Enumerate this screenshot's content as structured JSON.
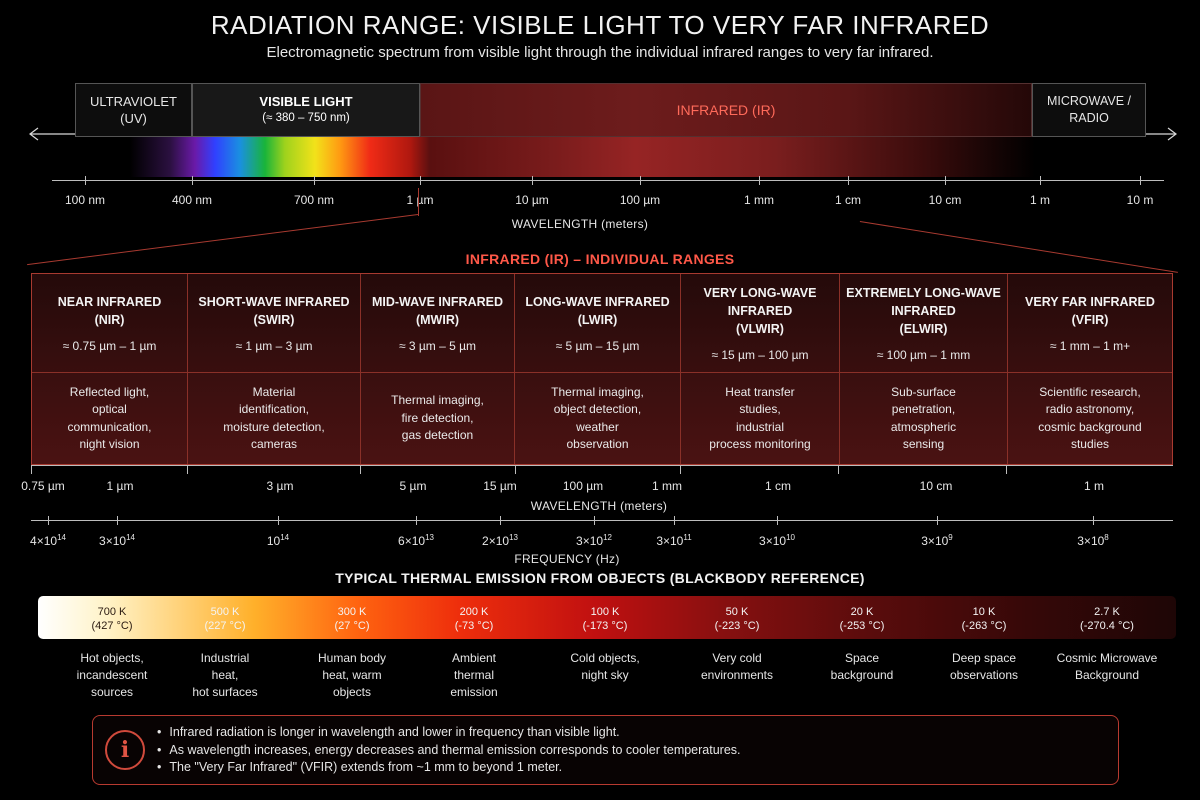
{
  "title": "RADIATION RANGE: VISIBLE LIGHT TO VERY FAR INFRARED",
  "subtitle": "Electromagnetic spectrum from visible light through the individual infrared ranges to very far infrared.",
  "spectrum": {
    "bands": [
      {
        "name": "ULTRAVIOLET",
        "sub": "(UV)"
      },
      {
        "name": "VISIBLE LIGHT",
        "sub": "(≈ 380 – 750 nm)"
      },
      {
        "name": "INFRARED (IR)",
        "sub": ""
      },
      {
        "name": "MICROWAVE /",
        "sub": "RADIO"
      }
    ],
    "ticks": [
      "100 nm",
      "400 nm",
      "700 nm",
      "1 µm",
      "10 µm",
      "100 µm",
      "1 mm",
      "1 cm",
      "10 cm",
      "1 m",
      "10 m"
    ],
    "axis_label": "WAVELENGTH (meters)"
  },
  "ir_ranges": {
    "heading": "INFRARED (IR) – INDIVIDUAL RANGES",
    "columns": [
      {
        "name": "NEAR INFRARED\n(NIR)",
        "range": "≈ 0.75 µm – 1 µm",
        "desc": "Reflected light,\noptical\ncommunication,\nnight vision"
      },
      {
        "name": "SHORT-WAVE INFRARED\n(SWIR)",
        "range": "≈ 1 µm – 3 µm",
        "desc": "Material\nidentification,\nmoisture detection,\ncameras"
      },
      {
        "name": "MID-WAVE INFRARED\n(MWIR)",
        "range": "≈ 3 µm – 5 µm",
        "desc": "Thermal imaging,\nfire detection,\ngas detection"
      },
      {
        "name": "LONG-WAVE INFRARED\n(LWIR)",
        "range": "≈ 5 µm – 15 µm",
        "desc": "Thermal imaging,\nobject detection,\nweather\nobservation"
      },
      {
        "name": "VERY LONG-WAVE\nINFRARED\n(VLWIR)",
        "range": "≈ 15 µm – 100 µm",
        "desc": "Heat transfer\nstudies,\nindustrial\nprocess monitoring"
      },
      {
        "name": "EXTREMELY LONG-WAVE\nINFRARED\n(ELWIR)",
        "range": "≈ 100 µm – 1 mm",
        "desc": "Sub-surface\npenetration,\natmospheric\nsensing"
      },
      {
        "name": "VERY FAR INFRARED\n(VFIR)",
        "range": "≈ 1 mm – 1 m+",
        "desc": "Scientific research,\nradio astronomy,\ncosmic background\nstudies"
      }
    ],
    "wavelength_ticks": [
      "0.75 µm",
      "1 µm",
      "3 µm",
      "5 µm",
      "15 µm",
      "100 µm",
      "1 mm",
      "1 cm",
      "10 cm",
      "1 m"
    ],
    "wavelength_label": "WAVELENGTH (meters)",
    "frequency_ticks": [
      {
        "base": "4×10",
        "exp": "14"
      },
      {
        "base": "3×10",
        "exp": "14"
      },
      {
        "base": "10",
        "exp": "14"
      },
      {
        "base": "6×10",
        "exp": "13"
      },
      {
        "base": "2×10",
        "exp": "13"
      },
      {
        "base": "3×10",
        "exp": "12"
      },
      {
        "base": "3×10",
        "exp": "11"
      },
      {
        "base": "3×10",
        "exp": "10"
      },
      {
        "base": "3×10",
        "exp": "9"
      },
      {
        "base": "3×10",
        "exp": "8"
      }
    ],
    "frequency_label": "FREQUENCY (Hz)"
  },
  "thermal": {
    "title": "TYPICAL THERMAL EMISSION FROM OBJECTS (BLACKBODY REFERENCE)",
    "stops": [
      {
        "k": "700 K",
        "c": "(427 °C)",
        "desc": "Hot objects,\nincandescent\nsources"
      },
      {
        "k": "500 K",
        "c": "(227 °C)",
        "desc": "Industrial\nheat,\nhot surfaces"
      },
      {
        "k": "300 K",
        "c": "(27 °C)",
        "desc": "Human body\nheat, warm\nobjects"
      },
      {
        "k": "200 K",
        "c": "(-73 °C)",
        "desc": "Ambient\nthermal\nemission"
      },
      {
        "k": "100 K",
        "c": "(-173 °C)",
        "desc": "Cold objects,\nnight sky"
      },
      {
        "k": "50 K",
        "c": "(-223 °C)",
        "desc": "Very cold\nenvironments"
      },
      {
        "k": "20 K",
        "c": "(-253 °C)",
        "desc": "Space\nbackground"
      },
      {
        "k": "10 K",
        "c": "(-263 °C)",
        "desc": "Deep space\nobservations"
      },
      {
        "k": "2.7 K",
        "c": "(-270.4 °C)",
        "desc": "Cosmic Microwave\nBackground"
      }
    ]
  },
  "info": {
    "icon": "info-icon",
    "bullets": [
      "Infrared radiation is longer in wavelength and lower in frequency than visible light.",
      "As wavelength increases, energy decreases and thermal emission corresponds to cooler temperatures.",
      "The \"Very Far Infrared\" (VFIR) extends from ~1 mm to beyond 1 meter."
    ]
  },
  "colors": {
    "accent": "#ff5848",
    "border": "#a83a30",
    "background": "#000000"
  }
}
